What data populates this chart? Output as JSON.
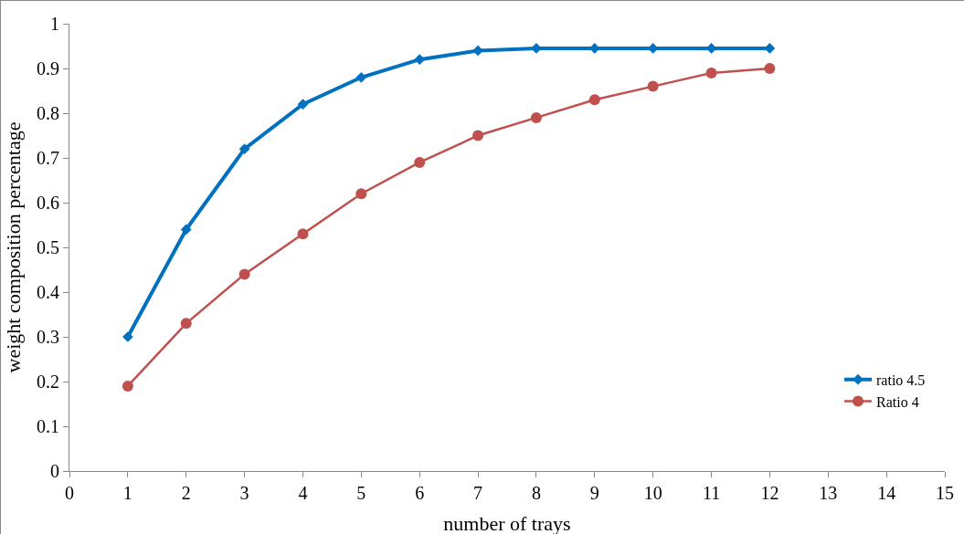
{
  "chart_data": {
    "type": "line",
    "xlabel": "number of trays",
    "ylabel": "weight composition percentage",
    "x": [
      1,
      2,
      3,
      4,
      5,
      6,
      7,
      8,
      9,
      10,
      11,
      12
    ],
    "series": [
      {
        "name": "ratio 4.5",
        "color": "#0070c0",
        "marker": "diamond",
        "values": [
          0.3,
          0.54,
          0.72,
          0.82,
          0.88,
          0.92,
          0.94,
          0.945,
          0.945,
          0.945,
          0.945,
          0.945
        ]
      },
      {
        "name": "Ratio 4",
        "color": "#c0504d",
        "marker": "circle",
        "values": [
          0.19,
          0.33,
          0.44,
          0.53,
          0.62,
          0.69,
          0.75,
          0.79,
          0.83,
          0.86,
          0.89,
          0.9
        ]
      }
    ],
    "xlim": [
      0,
      15
    ],
    "xticks": [
      0,
      1,
      2,
      3,
      4,
      5,
      6,
      7,
      8,
      9,
      10,
      11,
      12,
      13,
      14,
      15
    ],
    "ylim": [
      0,
      1
    ],
    "yticks": [
      0,
      0.1,
      0.2,
      0.3,
      0.4,
      0.5,
      0.6,
      0.7,
      0.8,
      0.9,
      1
    ],
    "grid": false,
    "legend": "right",
    "line_style": "solid"
  }
}
